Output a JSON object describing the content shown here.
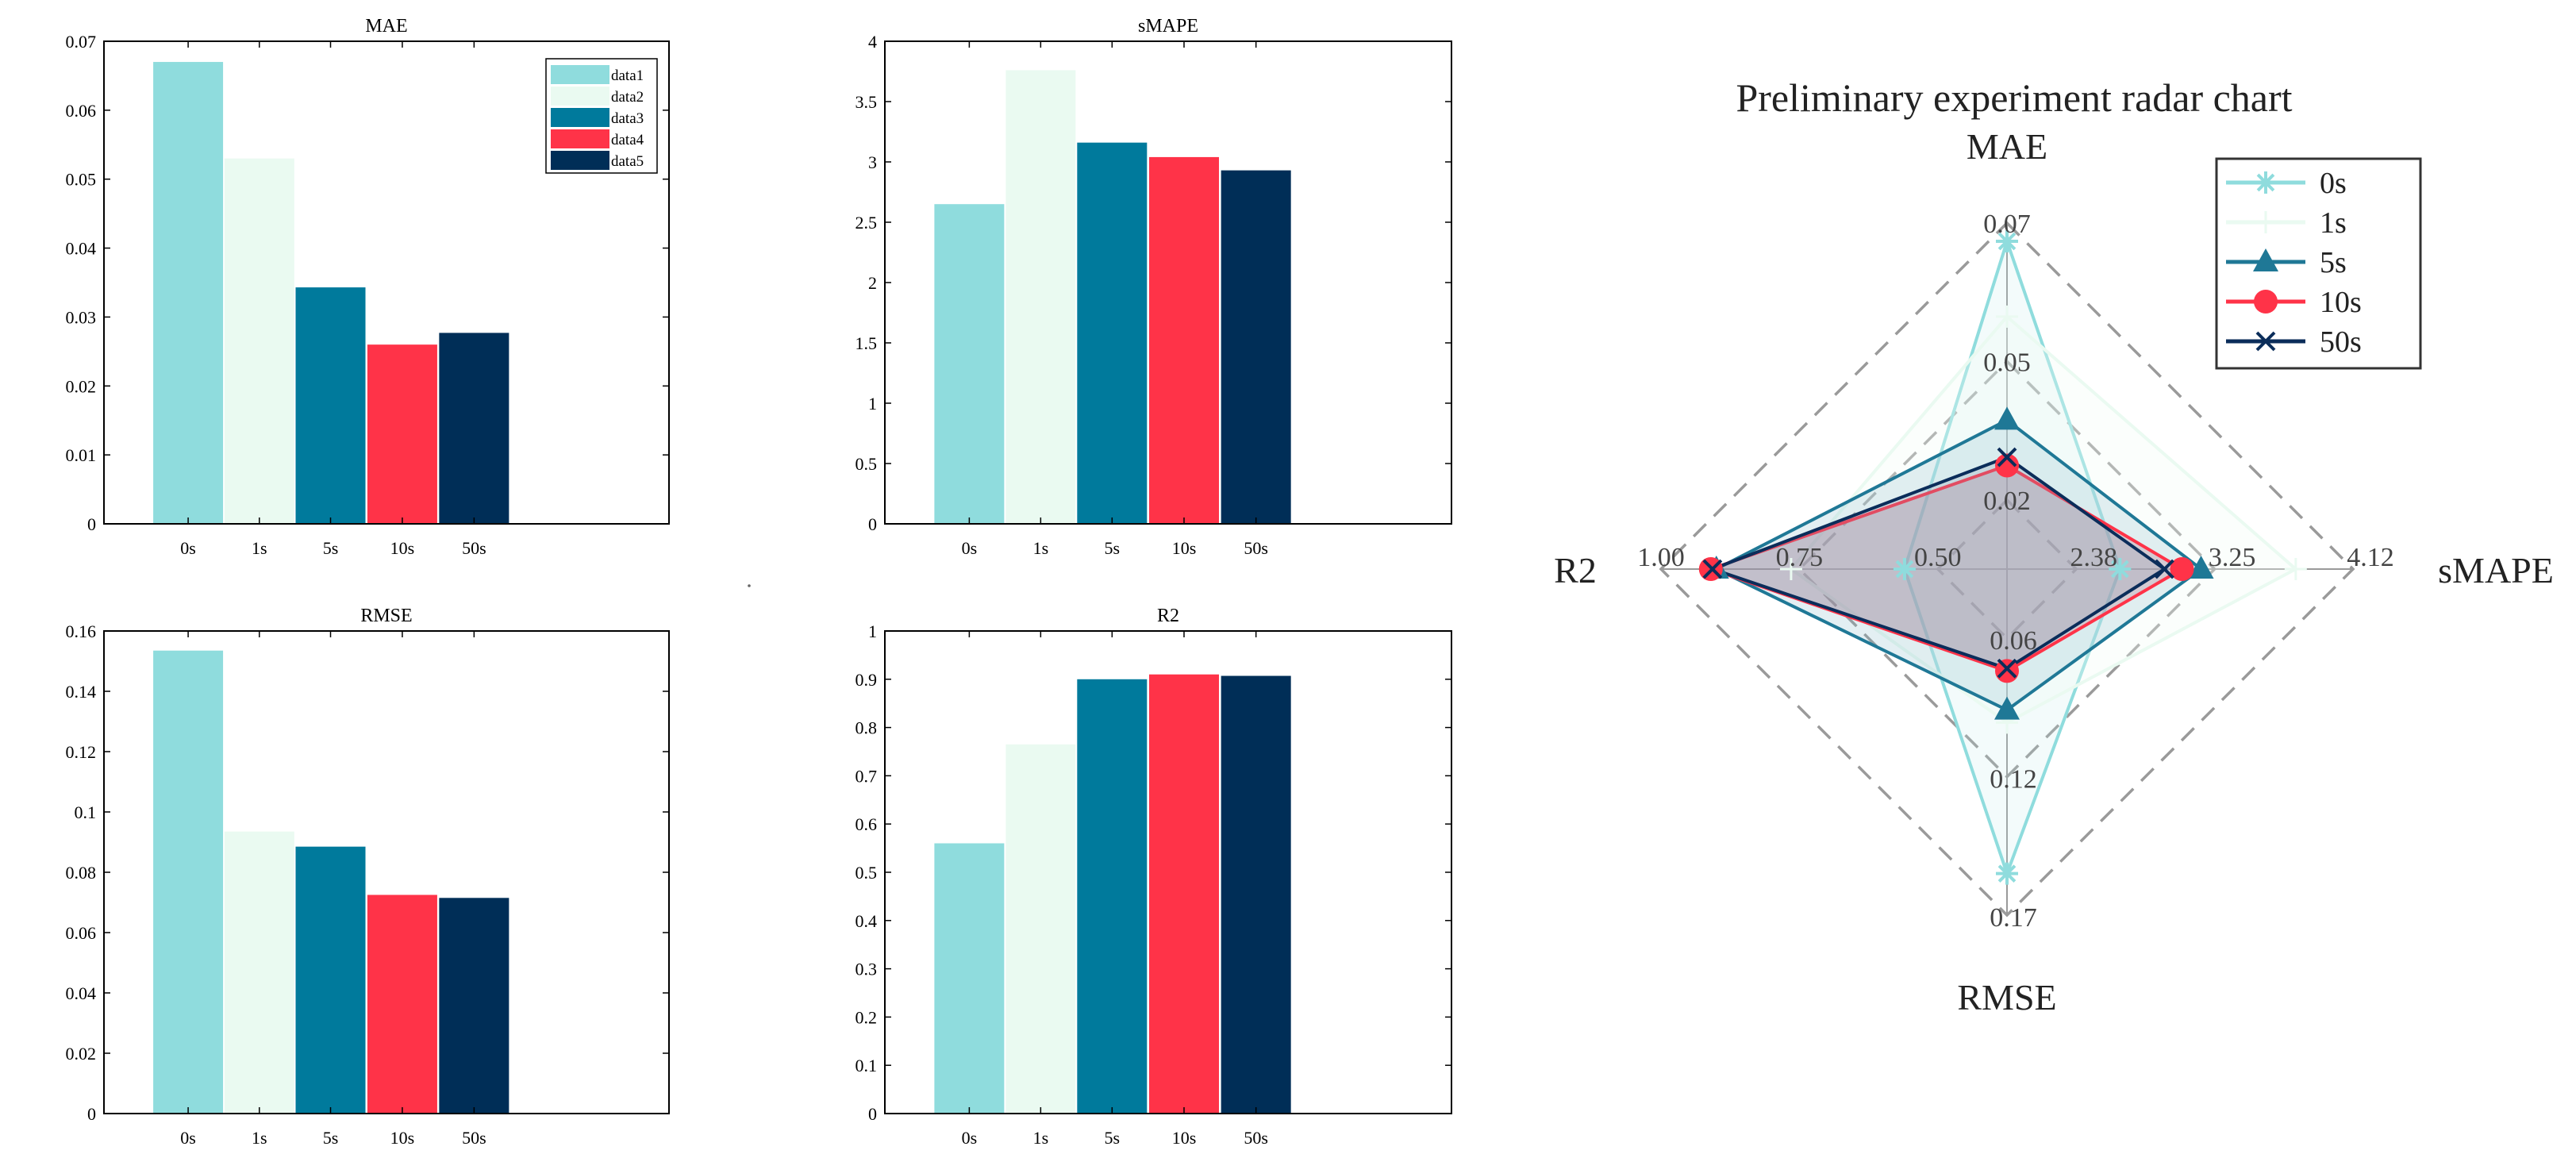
{
  "colors": {
    "c0": "#8fdcdd",
    "c1": "#eafaf1",
    "c2": "#007a9c",
    "c3": "#ff3348",
    "c4": "#002e57",
    "axis": "#000000",
    "grid": "#9a9a9a"
  },
  "chart_data": [
    {
      "type": "bar",
      "id": "mae",
      "title": "MAE",
      "categories": [
        "0s",
        "1s",
        "5s",
        "10s",
        "50s"
      ],
      "values": [
        0.067,
        0.053,
        0.0343,
        0.026,
        0.0277
      ],
      "ylim": [
        0,
        0.07
      ],
      "yticks": [
        0,
        0.01,
        0.02,
        0.03,
        0.04,
        0.05,
        0.06,
        0.07
      ],
      "ytick_labels": [
        "0",
        "0.01",
        "0.02",
        "0.03",
        "0.04",
        "0.05",
        "0.06",
        "0.07"
      ],
      "legend": [
        "data1",
        "data2",
        "data3",
        "data4",
        "data5"
      ],
      "legend_position": "top-right"
    },
    {
      "type": "bar",
      "id": "smape",
      "title": "sMAPE",
      "categories": [
        "0s",
        "1s",
        "5s",
        "10s",
        "50s"
      ],
      "values": [
        2.65,
        3.76,
        3.16,
        3.04,
        2.93
      ],
      "ylim": [
        0,
        4
      ],
      "yticks": [
        0,
        0.5,
        1,
        1.5,
        2,
        2.5,
        3,
        3.5,
        4
      ],
      "ytick_labels": [
        "0",
        "0.5",
        "1",
        "1.5",
        "2",
        "2.5",
        "3",
        "3.5",
        "4"
      ]
    },
    {
      "type": "bar",
      "id": "rmse",
      "title": "RMSE",
      "categories": [
        "0s",
        "1s",
        "5s",
        "10s",
        "50s"
      ],
      "values": [
        0.1535,
        0.0935,
        0.0885,
        0.0725,
        0.0715
      ],
      "ylim": [
        0,
        0.16
      ],
      "yticks": [
        0,
        0.02,
        0.04,
        0.06,
        0.08,
        0.1,
        0.12,
        0.14,
        0.16
      ],
      "ytick_labels": [
        "0",
        "0.02",
        "0.04",
        "0.06",
        "0.08",
        "0.1",
        "0.12",
        "0.14",
        "0.16"
      ]
    },
    {
      "type": "bar",
      "id": "r2",
      "title": "R2",
      "categories": [
        "0s",
        "1s",
        "5s",
        "10s",
        "50s"
      ],
      "values": [
        0.56,
        0.765,
        0.9,
        0.91,
        0.907
      ],
      "ylim": [
        0,
        1
      ],
      "yticks": [
        0,
        0.1,
        0.2,
        0.3,
        0.4,
        0.5,
        0.6,
        0.7,
        0.8,
        0.9,
        1
      ],
      "ytick_labels": [
        "0",
        "0.1",
        "0.2",
        "0.3",
        "0.4",
        "0.5",
        "0.6",
        "0.7",
        "0.8",
        "0.9",
        "1"
      ]
    },
    {
      "type": "radar",
      "id": "radar",
      "title": "Preliminary experiment radar chart",
      "axes": [
        {
          "name": "MAE",
          "ticks": [
            "0.02",
            "0.05",
            "0.07"
          ],
          "min": 0.02,
          "max": 0.07
        },
        {
          "name": "sMAPE",
          "ticks": [
            "2.38",
            "3.25",
            "4.12"
          ],
          "min": 2.38,
          "max": 4.12
        },
        {
          "name": "RMSE",
          "ticks": [
            "0.06",
            "0.12",
            "0.17"
          ],
          "min": 0.06,
          "max": 0.17
        },
        {
          "name": "R2",
          "ticks": [
            "0.50",
            "0.75",
            "1.00"
          ],
          "min": 0.5,
          "max": 1.0
        }
      ],
      "series": [
        {
          "name": "0s",
          "marker": "asterisk",
          "color": "#8fdcdd",
          "values": [
            0.0667,
            2.655,
            0.1535,
            0.56
          ]
        },
        {
          "name": "1s",
          "marker": "plus",
          "color": "#eafaf1",
          "values": [
            0.0531,
            3.76,
            0.0935,
            0.765
          ]
        },
        {
          "name": "5s",
          "marker": "triangle",
          "color": "#1f7896",
          "values": [
            0.0344,
            3.165,
            0.0885,
            0.9
          ]
        },
        {
          "name": "10s",
          "marker": "circle",
          "color": "#ff3348",
          "values": [
            0.0262,
            3.045,
            0.073,
            0.91
          ]
        },
        {
          "name": "50s",
          "marker": "x",
          "color": "#0b2d5a",
          "values": [
            0.0277,
            2.935,
            0.072,
            0.907
          ]
        }
      ]
    }
  ]
}
